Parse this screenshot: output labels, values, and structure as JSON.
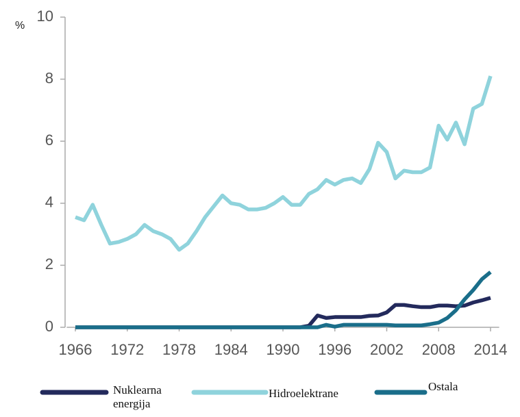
{
  "chart_data": {
    "type": "line",
    "ylabel": "%",
    "x": [
      1966,
      1967,
      1968,
      1969,
      1970,
      1971,
      1972,
      1973,
      1974,
      1975,
      1976,
      1977,
      1978,
      1979,
      1980,
      1981,
      1982,
      1983,
      1984,
      1985,
      1986,
      1987,
      1988,
      1989,
      1990,
      1991,
      1992,
      1993,
      1994,
      1995,
      1996,
      1997,
      1998,
      1999,
      2000,
      2001,
      2002,
      2003,
      2004,
      2005,
      2006,
      2007,
      2008,
      2009,
      2010,
      2011,
      2012,
      2013,
      2014
    ],
    "series": [
      {
        "name": "Nuklearna energija",
        "color": "#232a5c",
        "values": [
          0,
          0,
          0,
          0,
          0,
          0,
          0,
          0,
          0,
          0,
          0,
          0,
          0,
          0,
          0,
          0,
          0,
          0,
          0,
          0,
          0,
          0,
          0,
          0,
          0,
          0,
          0,
          0.05,
          0.38,
          0.3,
          0.33,
          0.33,
          0.33,
          0.33,
          0.37,
          0.38,
          0.48,
          0.72,
          0.72,
          0.68,
          0.65,
          0.65,
          0.7,
          0.7,
          0.68,
          0.7,
          0.8,
          0.87,
          0.95
        ]
      },
      {
        "name": "Hidroelektrane",
        "color": "#8fd3dc",
        "values": [
          3.55,
          3.45,
          3.95,
          3.3,
          2.7,
          2.75,
          2.85,
          3.0,
          3.3,
          3.1,
          3.0,
          2.85,
          2.5,
          2.7,
          3.1,
          3.55,
          3.9,
          4.25,
          4.0,
          3.95,
          3.8,
          3.8,
          3.85,
          4.0,
          4.2,
          3.95,
          3.95,
          4.3,
          4.45,
          4.75,
          4.6,
          4.75,
          4.8,
          4.65,
          5.1,
          5.95,
          5.65,
          4.8,
          5.05,
          5.0,
          5.0,
          5.15,
          6.5,
          6.05,
          6.6,
          5.9,
          7.05,
          7.2,
          8.1
        ]
      },
      {
        "name": "Ostala",
        "color": "#1a6e8a",
        "values": [
          0,
          0,
          0,
          0,
          0,
          0,
          0,
          0,
          0,
          0,
          0,
          0,
          0,
          0,
          0,
          0,
          0,
          0,
          0,
          0,
          0,
          0,
          0,
          0,
          0,
          0,
          0,
          0,
          0,
          0.08,
          0.02,
          0.08,
          0.08,
          0.08,
          0.08,
          0.08,
          0.08,
          0.06,
          0.06,
          0.06,
          0.06,
          0.1,
          0.15,
          0.3,
          0.55,
          0.9,
          1.2,
          1.55,
          1.78
        ]
      }
    ],
    "xlim": [
      1965,
      2015
    ],
    "xticks": [
      1966,
      1972,
      1978,
      1984,
      1990,
      1996,
      2002,
      2008,
      2014
    ],
    "ylim": [
      0,
      10
    ],
    "yticks": [
      0,
      2,
      4,
      6,
      8,
      10
    ],
    "grid": false
  }
}
